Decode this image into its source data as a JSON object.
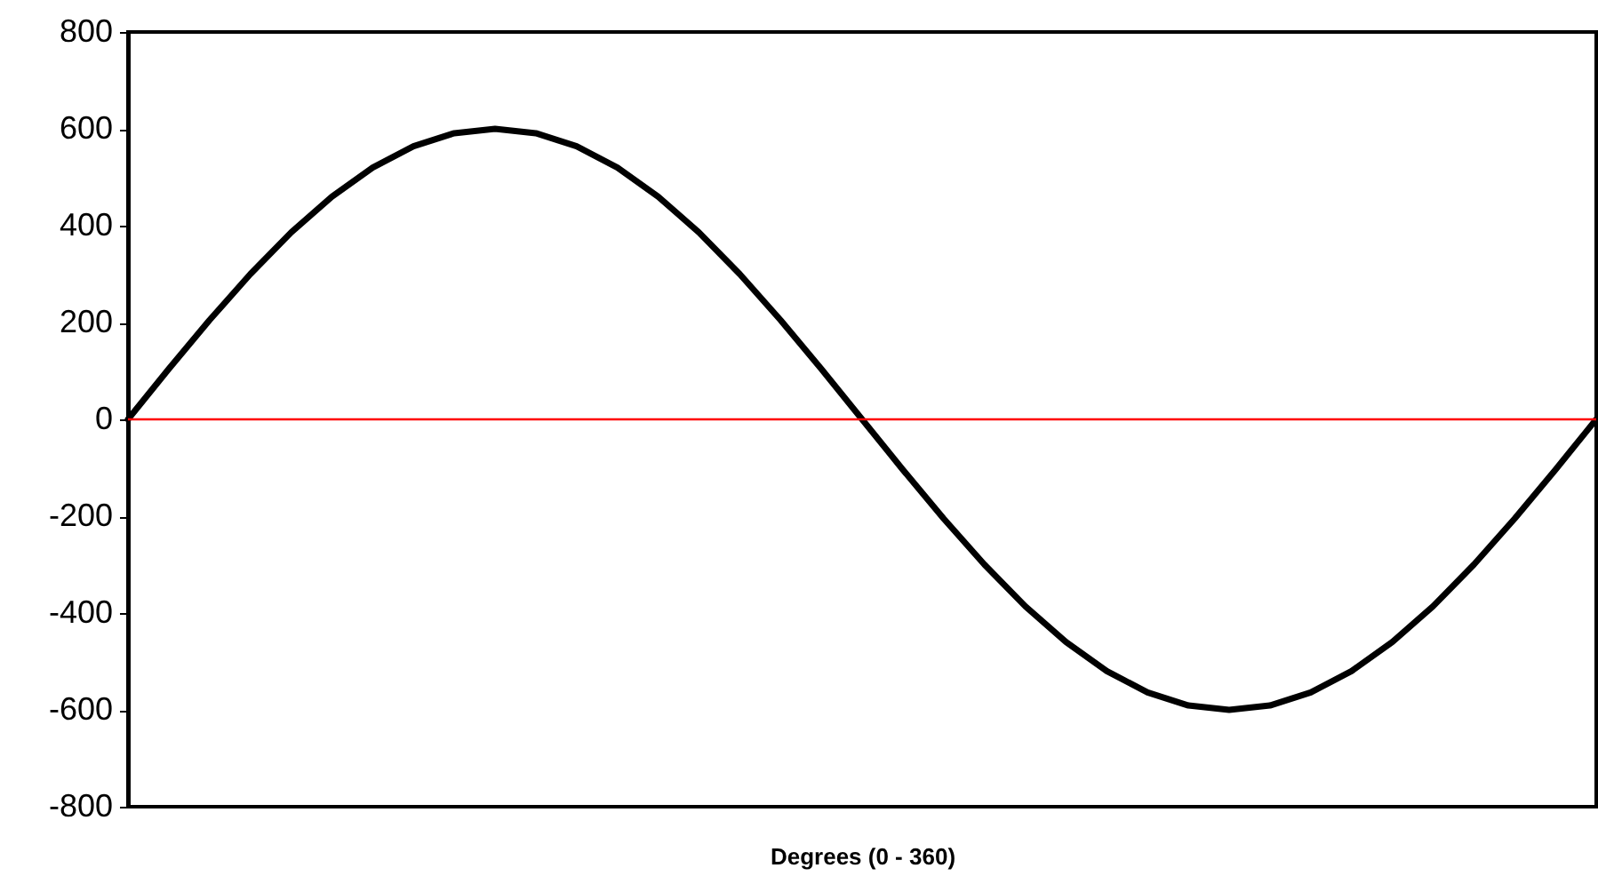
{
  "chart_data": {
    "type": "line",
    "xlabel": "Degrees (0 - 360)",
    "categories": [
      null,
      null,
      null,
      null,
      null,
      null,
      null,
      null,
      null,
      null,
      null,
      null,
      null,
      null,
      null,
      null,
      null,
      null,
      null,
      null,
      null,
      null,
      null,
      null,
      null,
      null,
      null,
      null,
      null,
      null,
      null,
      null,
      null,
      null,
      null,
      null,
      null
    ],
    "series": [
      {
        "color": "#000000",
        "values": [
          0,
          104,
          205,
          300,
          386,
          460,
          520,
          564,
          591,
          600,
          591,
          564,
          520,
          460,
          386,
          300,
          205,
          104,
          0,
          -104,
          -205,
          -300,
          -386,
          -460,
          -520,
          -564,
          -591,
          -600,
          -591,
          -564,
          -520,
          -460,
          -386,
          -300,
          -205,
          -104,
          0
        ]
      }
    ],
    "ylim": [
      -800,
      800
    ],
    "yticks": [
      -800,
      -600,
      -400,
      -200,
      0,
      200,
      400,
      600,
      800
    ],
    "tick_labels": "y",
    "grid": false,
    "marker": "none",
    "line_style": "solid",
    "ref_lines": [
      {
        "axis": "y",
        "value": 0,
        "color": "#ff0000"
      }
    ]
  }
}
